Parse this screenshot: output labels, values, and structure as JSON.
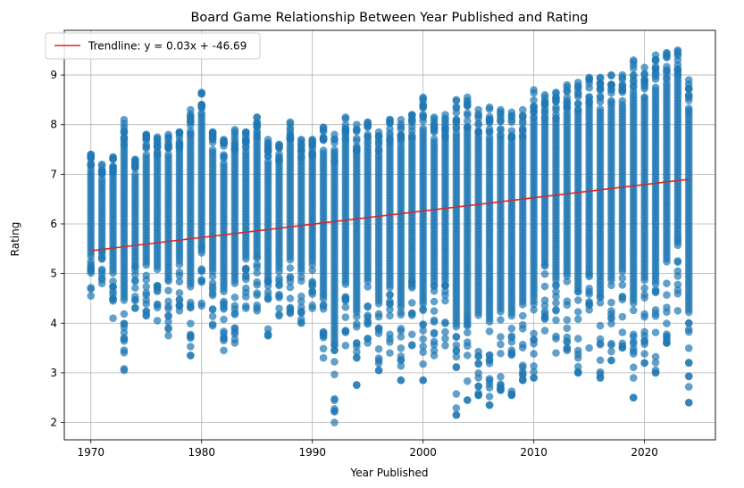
{
  "chart_data": {
    "type": "scatter",
    "title": "Board Game Relationship Between Year Published and Rating",
    "xlabel": "Year Published",
    "ylabel": "Rating",
    "xlim": [
      1967.6,
      2026.4
    ],
    "ylim": [
      1.65,
      9.9
    ],
    "xticks": [
      1970,
      1980,
      1990,
      2000,
      2010,
      2020
    ],
    "yticks": [
      2,
      3,
      4,
      5,
      6,
      7,
      8,
      9
    ],
    "grid": true,
    "legend_position": "top-left",
    "colors": {
      "points": "#1f77b4",
      "trendline": "#d62728"
    },
    "series": [
      {
        "name": "",
        "kind": "scatter",
        "years": [
          1970,
          1971,
          1972,
          1973,
          1974,
          1975,
          1976,
          1977,
          1978,
          1979,
          1980,
          1981,
          1982,
          1983,
          1984,
          1985,
          1986,
          1987,
          1988,
          1989,
          1990,
          1991,
          1992,
          1993,
          1994,
          1995,
          1996,
          1997,
          1998,
          1999,
          2000,
          2001,
          2002,
          2003,
          2004,
          2005,
          2006,
          2007,
          2008,
          2009,
          2010,
          2011,
          2012,
          2013,
          2014,
          2015,
          2016,
          2017,
          2018,
          2019,
          2020,
          2021,
          2022,
          2023,
          2024
        ],
        "min_rating": [
          4.55,
          4.8,
          4.1,
          3.05,
          4.3,
          4.15,
          4.05,
          3.75,
          4.25,
          3.35,
          4.35,
          3.95,
          3.45,
          3.6,
          4.3,
          4.25,
          3.75,
          4.15,
          4.2,
          4.0,
          4.3,
          3.3,
          2.0,
          3.55,
          2.75,
          3.6,
          3.05,
          3.4,
          2.85,
          3.55,
          2.85,
          3.45,
          3.55,
          2.15,
          2.45,
          2.55,
          2.35,
          2.65,
          2.55,
          2.85,
          2.9,
          3.85,
          3.4,
          3.45,
          3.0,
          3.5,
          2.9,
          3.25,
          3.5,
          2.5,
          3.2,
          3.0,
          3.6,
          4.25,
          2.4
        ],
        "max_rating": [
          7.4,
          7.2,
          7.35,
          8.1,
          7.3,
          7.8,
          7.75,
          7.8,
          7.85,
          8.3,
          8.65,
          7.85,
          7.7,
          7.9,
          7.85,
          8.15,
          7.7,
          7.6,
          8.05,
          7.7,
          7.7,
          7.95,
          7.8,
          8.15,
          8.0,
          8.05,
          7.85,
          8.1,
          8.1,
          8.2,
          8.55,
          8.15,
          8.2,
          8.5,
          8.55,
          8.3,
          8.35,
          8.3,
          8.25,
          8.3,
          8.7,
          8.6,
          8.65,
          8.8,
          8.85,
          8.95,
          8.95,
          9.0,
          9.0,
          9.3,
          9.15,
          9.4,
          9.45,
          9.5,
          8.9
        ],
        "outliers": [
          [
            1973,
            3.7
          ],
          [
            1979,
            3.35
          ],
          [
            1982,
            3.65
          ],
          [
            1986,
            3.75
          ],
          [
            1991,
            3.75
          ],
          [
            1992,
            3.45
          ],
          [
            1993,
            3.85
          ],
          [
            1996,
            3.05
          ],
          [
            1998,
            2.85
          ],
          [
            2000,
            2.85
          ],
          [
            2001,
            3.35
          ],
          [
            2003,
            2.15
          ],
          [
            2004,
            2.45
          ],
          [
            2005,
            2.55
          ],
          [
            2005,
            2.9
          ],
          [
            2006,
            2.35
          ],
          [
            2006,
            2.7
          ],
          [
            2007,
            2.65
          ],
          [
            2008,
            2.55
          ],
          [
            2009,
            2.85
          ],
          [
            2009,
            3.15
          ],
          [
            2010,
            2.9
          ],
          [
            2014,
            3.0
          ],
          [
            2016,
            2.9
          ],
          [
            2017,
            3.25
          ],
          [
            2019,
            2.5
          ],
          [
            2020,
            3.2
          ],
          [
            2020,
            3.65
          ],
          [
            2021,
            3.0
          ],
          [
            2022,
            3.6
          ],
          [
            2024,
            2.4
          ]
        ]
      },
      {
        "name": "Trendline: y = 0.03x + -46.69",
        "kind": "line",
        "x": [
          1970,
          2024
        ],
        "y": [
          5.46,
          6.9
        ]
      }
    ]
  }
}
